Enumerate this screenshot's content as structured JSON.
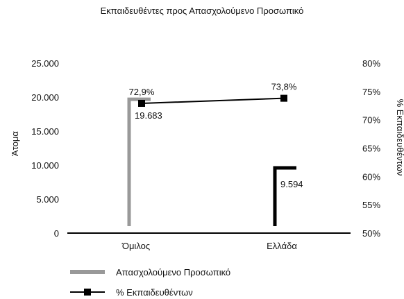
{
  "chart_data": {
    "type": "bar",
    "title": "Εκπαιδευθέντες προς Απασχολούμενο Προσωπικό",
    "categories": [
      "Όμιλος",
      "Ελλάδα"
    ],
    "ylabel": "Άτομα",
    "y2label": "% Εκπαιδευθέντων",
    "ylim": [
      0,
      25000
    ],
    "y2lim": [
      0.5,
      0.8
    ],
    "yticks": [
      "0",
      "5.000",
      "10.000",
      "15.000",
      "20.000",
      "25.000"
    ],
    "y2ticks": [
      "50%",
      "55%",
      "60%",
      "65%",
      "70%",
      "75%",
      "80%"
    ],
    "series": [
      {
        "name": "Απασχολούμενο Προσωπικό",
        "type": "bar",
        "axis": "left",
        "color": "#999999",
        "values": [
          19683,
          9594
        ],
        "value_colors": [
          "#999999",
          "#000000"
        ],
        "labels": [
          "19.683",
          "9.594"
        ]
      },
      {
        "name": "% Εκπαιδευθέντων",
        "type": "line",
        "axis": "right",
        "color": "#000000",
        "marker": "square",
        "values": [
          0.729,
          0.738
        ],
        "labels": [
          "72,9%",
          "73,8%"
        ]
      }
    ],
    "legend": "bottom-left",
    "grid": false
  }
}
